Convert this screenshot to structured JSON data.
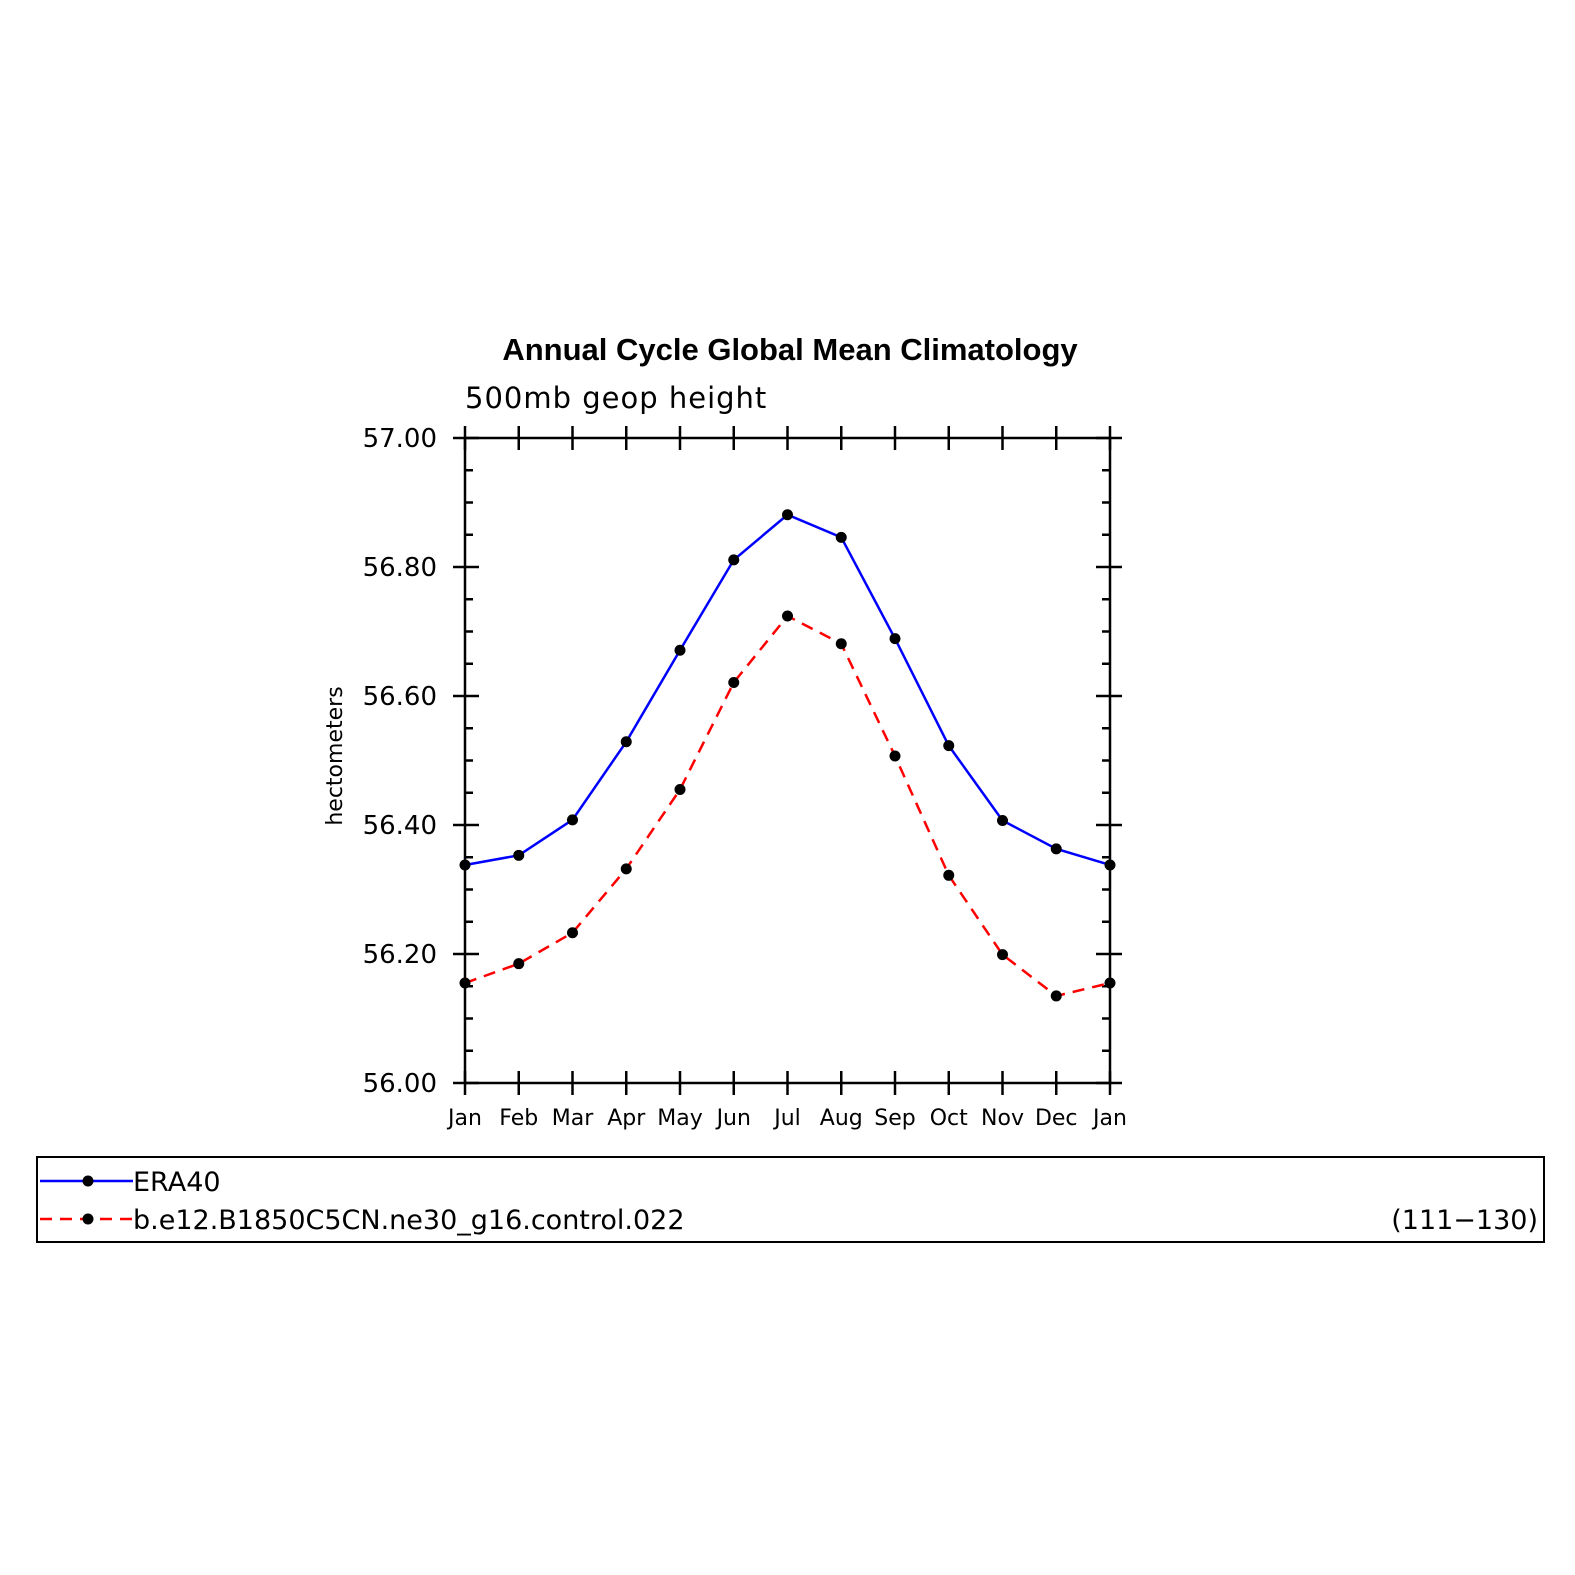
{
  "chart_data": {
    "type": "line",
    "title": "Annual Cycle Global Mean Climatology",
    "subtitle": "500mb geop height",
    "ylabel": "hectometers",
    "xlabel": "",
    "categories": [
      "Jan",
      "Feb",
      "Mar",
      "Apr",
      "May",
      "Jun",
      "Jul",
      "Aug",
      "Sep",
      "Oct",
      "Nov",
      "Dec",
      "Jan"
    ],
    "ylim": [
      56.0,
      57.0
    ],
    "yticks": [
      "56.00",
      "56.20",
      "56.40",
      "56.60",
      "56.80",
      "57.00"
    ],
    "grid": false,
    "legend_placement": "bottom",
    "legend_note": "(111−130)",
    "series": [
      {
        "name": "ERA40",
        "color": "#0000ff",
        "dash": "solid",
        "values": [
          56.338,
          56.353,
          56.408,
          56.529,
          56.671,
          56.811,
          56.881,
          56.846,
          56.689,
          56.523,
          56.407,
          56.363,
          56.338
        ]
      },
      {
        "name": "b.e12.B1850C5CN.ne30_g16.control.022",
        "color": "#ff0000",
        "dash": "dashed",
        "values": [
          56.155,
          56.185,
          56.233,
          56.332,
          56.455,
          56.621,
          56.724,
          56.681,
          56.507,
          56.322,
          56.199,
          56.135,
          56.155
        ]
      }
    ]
  }
}
